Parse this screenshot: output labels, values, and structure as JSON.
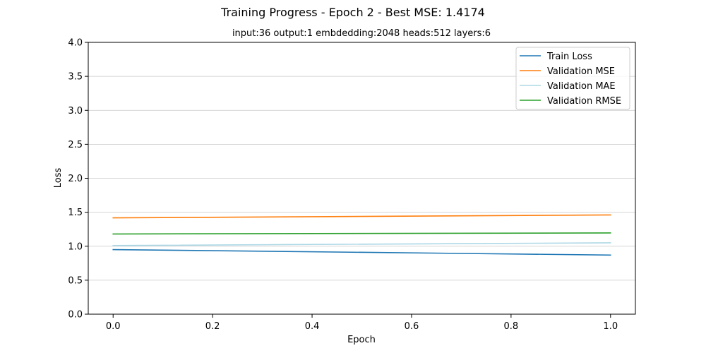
{
  "chart_data": {
    "type": "line",
    "title": "Training Progress - Epoch 2 - Best MSE: 1.4174",
    "subtitle": "input:36 output:1 embdedding:2048 heads:512 layers:6",
    "xlabel": "Epoch",
    "ylabel": "Loss",
    "xlim": [
      -0.05,
      1.05
    ],
    "ylim": [
      0,
      4
    ],
    "xticks": [
      0.0,
      0.2,
      0.4,
      0.6,
      0.8,
      1.0
    ],
    "xtick_labels": [
      "0.0",
      "0.2",
      "0.4",
      "0.6",
      "0.8",
      "1.0"
    ],
    "yticks": [
      0.0,
      0.5,
      1.0,
      1.5,
      2.0,
      2.5,
      3.0,
      3.5,
      4.0
    ],
    "ytick_labels": [
      "0.0",
      "0.5",
      "1.0",
      "1.5",
      "2.0",
      "2.5",
      "3.0",
      "3.5",
      "4.0"
    ],
    "grid": "horizontal",
    "legend_position": "top-right",
    "x": [
      0,
      1
    ],
    "series": [
      {
        "name": "Train Loss",
        "color": "#1f77b4",
        "values": [
          0.95,
          0.87
        ]
      },
      {
        "name": "Validation MSE",
        "color": "#ff7f0e",
        "values": [
          1.4174,
          1.46
        ]
      },
      {
        "name": "Validation MAE",
        "color": "#add8e6",
        "values": [
          1.01,
          1.05
        ]
      },
      {
        "name": "Validation RMSE",
        "color": "#2ca02c",
        "values": [
          1.18,
          1.195
        ]
      }
    ]
  }
}
